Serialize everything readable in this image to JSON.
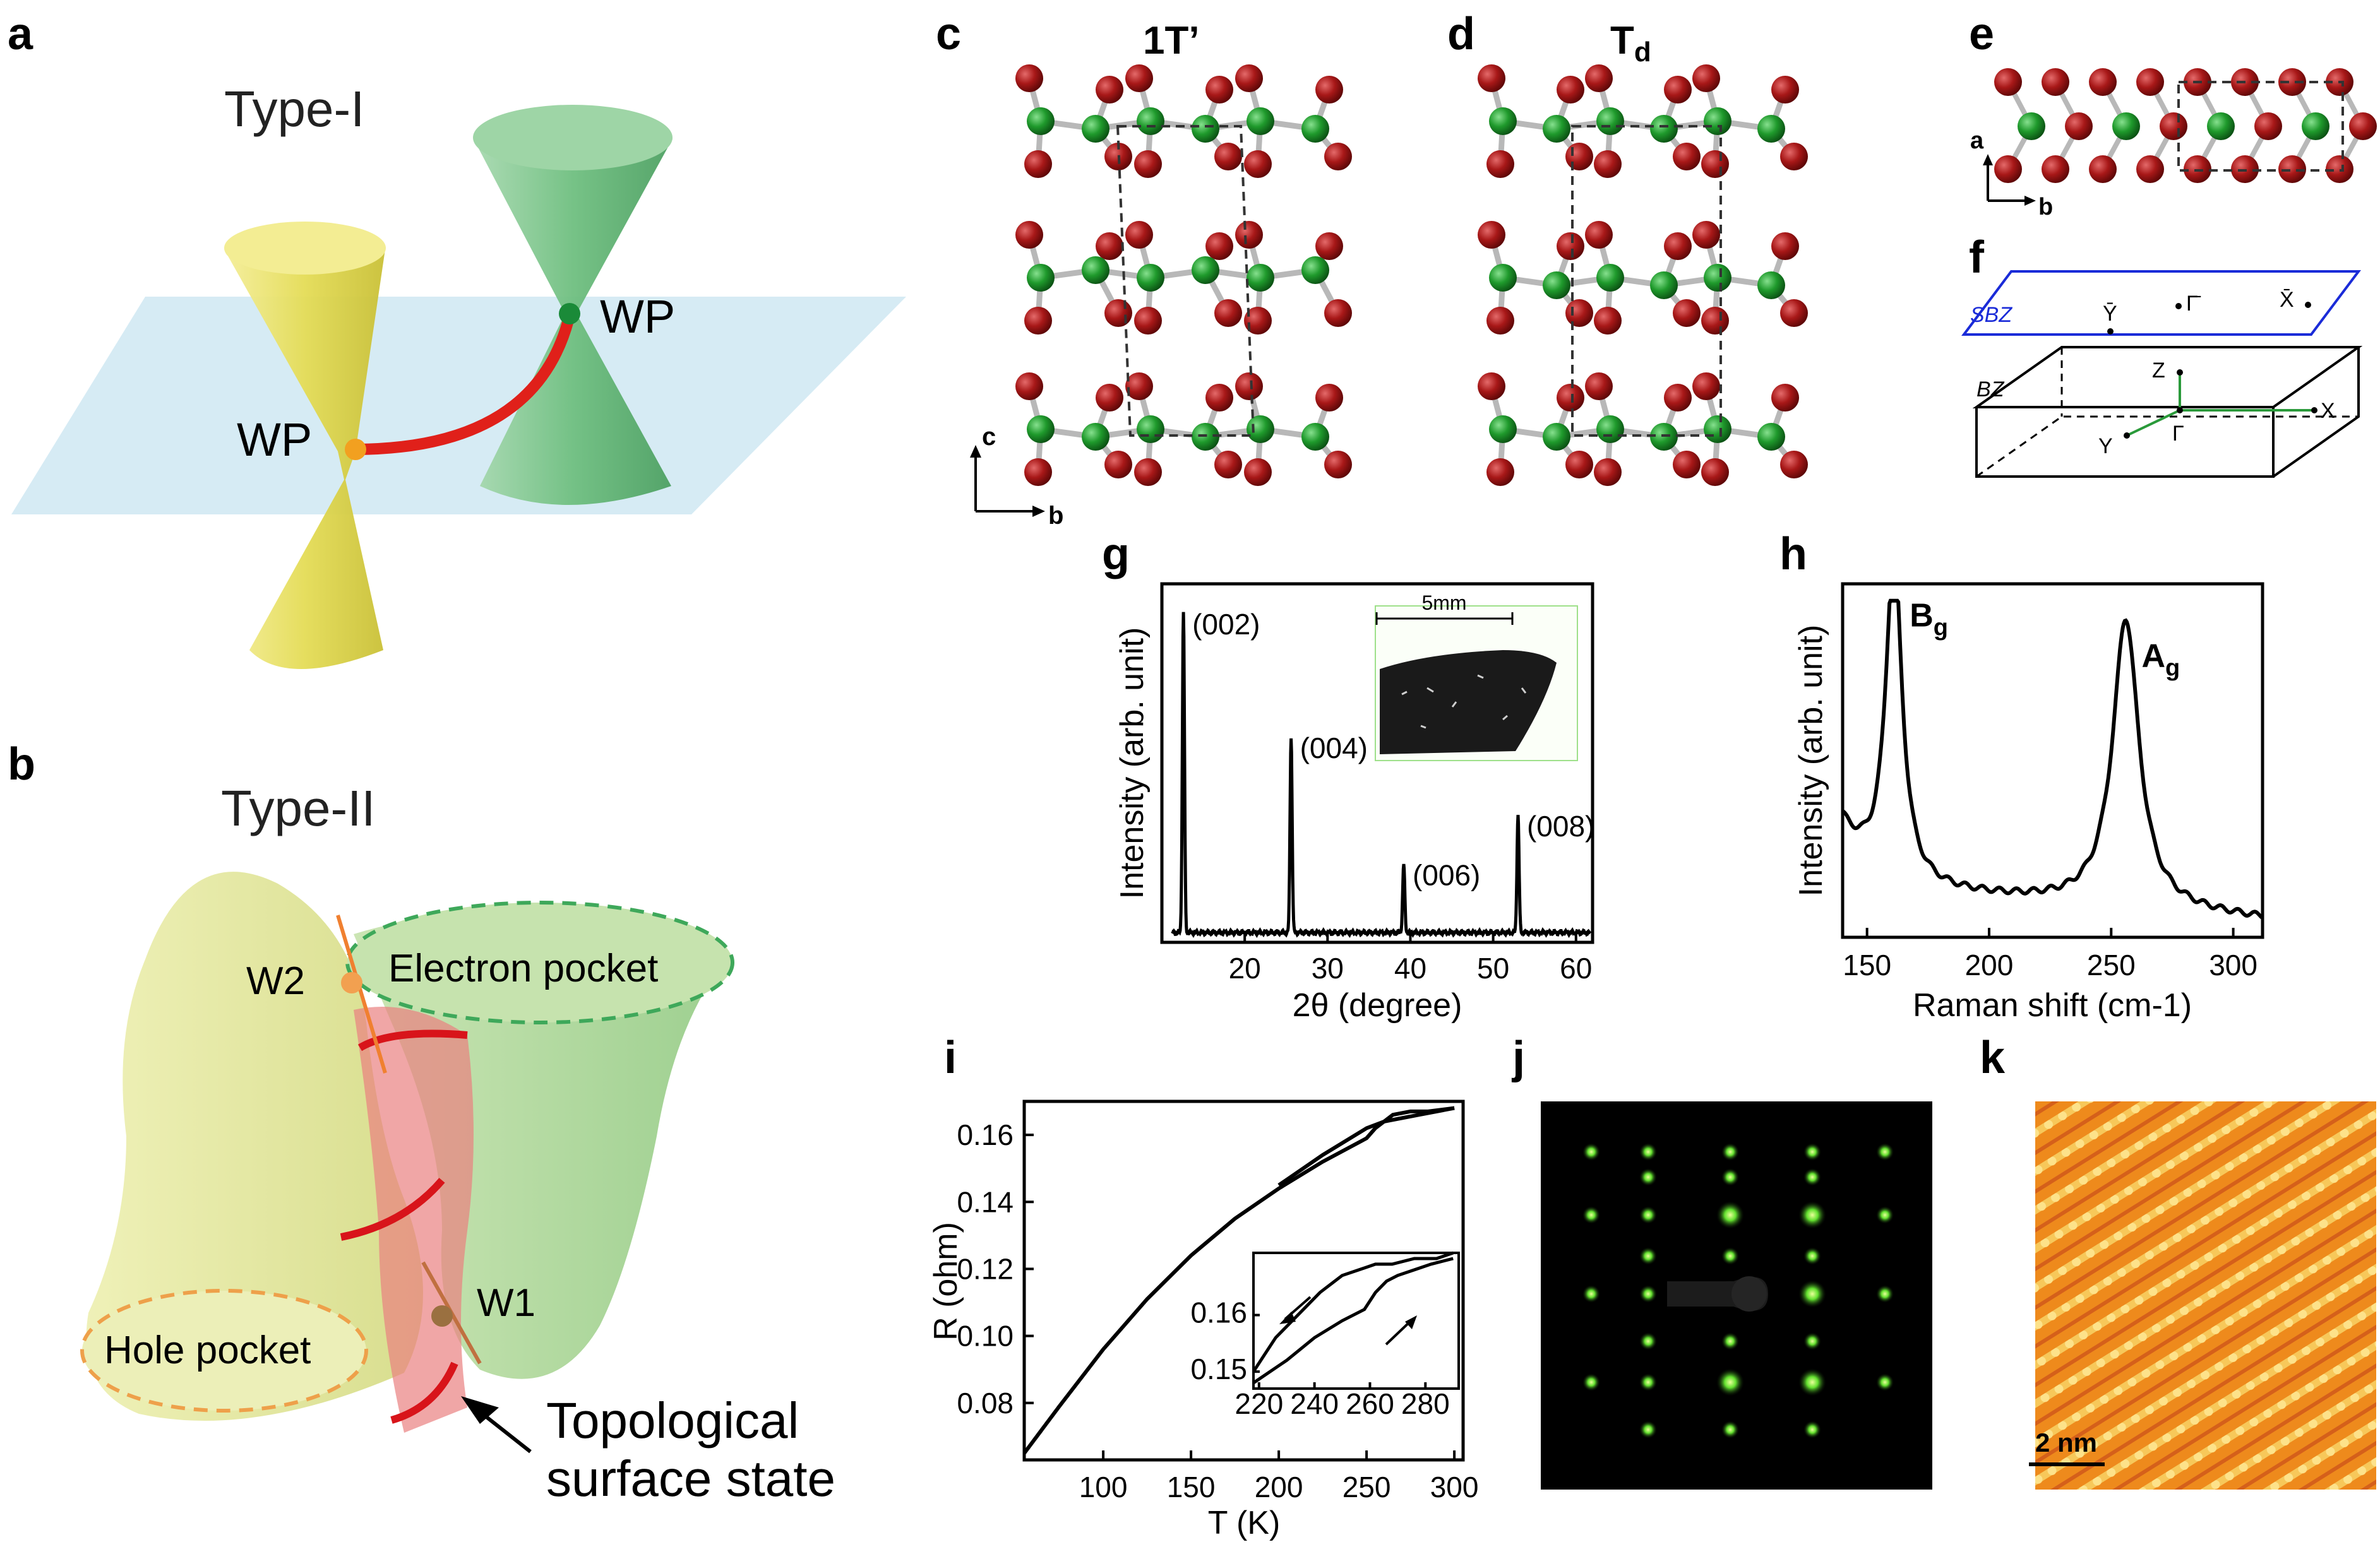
{
  "panels": {
    "a": "a",
    "b": "b",
    "c": "c",
    "d": "d",
    "e": "e",
    "f": "f",
    "g": "g",
    "h": "h",
    "i": "i",
    "j": "j",
    "k": "k"
  },
  "a": {
    "title": "Type-I",
    "wp_left": "WP",
    "wp_right": "WP"
  },
  "b": {
    "title": "Type-II",
    "w2": "W2",
    "w1": "W1",
    "electron_pocket": "Electron pocket",
    "hole_pocket": "Hole pocket",
    "tss_line1": "Topological",
    "tss_line2": "surface state"
  },
  "c": {
    "title": "1T’",
    "axis_c": "c",
    "axis_b": "b"
  },
  "d": {
    "title": "T",
    "title_sub": "d"
  },
  "e": {
    "axis_a": "a",
    "axis_b": "b"
  },
  "f": {
    "sbz": "SBZ",
    "bz": "BZ",
    "ybar": "Ȳ",
    "gammabar": "Γ̄",
    "xbar": "X̄",
    "z": "Z",
    "x": "X",
    "y": "Y",
    "gamma": "Γ"
  },
  "colors": {
    "te": "#9b1414",
    "w": "#1e8c2a",
    "yellow_cone": "#ece56a",
    "green_cone": "#7cc58a",
    "plane": "#cfe8f2",
    "arc": "#e0201a",
    "stm": "#e8741a"
  },
  "chart_data": [
    {
      "id": "g",
      "type": "line",
      "xlabel": "2θ (degree)",
      "ylabel": "Intensity (arb. unit)",
      "xlim": [
        10,
        62
      ],
      "ylim": [
        0,
        1.1
      ],
      "xticks": [
        20,
        30,
        40,
        50,
        60
      ],
      "peaks": [
        {
          "x": 12.6,
          "height": 0.98,
          "label": "(002)"
        },
        {
          "x": 25.6,
          "height": 0.6,
          "label": "(004)"
        },
        {
          "x": 39.2,
          "height": 0.21,
          "label": "(006)"
        },
        {
          "x": 53.0,
          "height": 0.36,
          "label": "(008)"
        }
      ],
      "baseline": 0.03,
      "inset_scale": "5mm"
    },
    {
      "id": "h",
      "type": "line",
      "xlabel": "Raman shift (cm-1)",
      "ylabel": "Intensity (arb. unit)",
      "xlim": [
        140,
        312
      ],
      "ylim": [
        0,
        1.05
      ],
      "xticks": [
        150,
        200,
        250,
        300
      ],
      "peaks": [
        {
          "x": 161,
          "height": 0.98,
          "width": 4.0,
          "label": "B",
          "sub": "g"
        },
        {
          "x": 256,
          "height": 0.86,
          "width": 6.5,
          "label": "A",
          "sub": "g"
        }
      ],
      "baseline": 0.12
    },
    {
      "id": "i",
      "type": "line",
      "xlabel": "T (K)",
      "ylabel": "R (ohm)",
      "xlim": [
        55,
        305
      ],
      "ylim": [
        0.063,
        0.17
      ],
      "xticks": [
        100,
        150,
        200,
        250,
        300
      ],
      "yticks": [
        0.08,
        0.1,
        0.12,
        0.14,
        0.16
      ],
      "series": [
        {
          "x": [
            55,
            75,
            100,
            125,
            150,
            175,
            200,
            225,
            250,
            255,
            265,
            275,
            285,
            300
          ],
          "y": [
            0.065,
            0.079,
            0.096,
            0.111,
            0.124,
            0.135,
            0.144,
            0.152,
            0.159,
            0.162,
            0.166,
            0.167,
            0.167,
            0.168
          ]
        },
        {
          "x": [
            200,
            225,
            250,
            260,
            270,
            280,
            290,
            300
          ],
          "y": [
            0.145,
            0.154,
            0.162,
            0.164,
            0.165,
            0.166,
            0.167,
            0.168
          ]
        }
      ],
      "inset": {
        "xlim": [
          218,
          292
        ],
        "ylim": [
          0.147,
          0.171
        ],
        "xticks": [
          220,
          240,
          260,
          280
        ],
        "yticks": [
          0.15,
          0.16
        ],
        "series": [
          {
            "x": [
              218,
              230,
              240,
              250,
              258,
              262,
              266,
              270,
              276,
              282,
              290
            ],
            "y": [
              0.148,
              0.152,
              0.156,
              0.159,
              0.161,
              0.164,
              0.166,
              0.167,
              0.168,
              0.169,
              0.17
            ]
          },
          {
            "x": [
              218,
              226,
              234,
              242,
              250,
              256,
              262,
              268,
              276,
              284,
              290
            ],
            "y": [
              0.15,
              0.156,
              0.16,
              0.164,
              0.167,
              0.168,
              0.169,
              0.169,
              0.17,
              0.17,
              0.171
            ]
          }
        ]
      }
    }
  ],
  "k": {
    "scale_bar": "2 nm"
  }
}
